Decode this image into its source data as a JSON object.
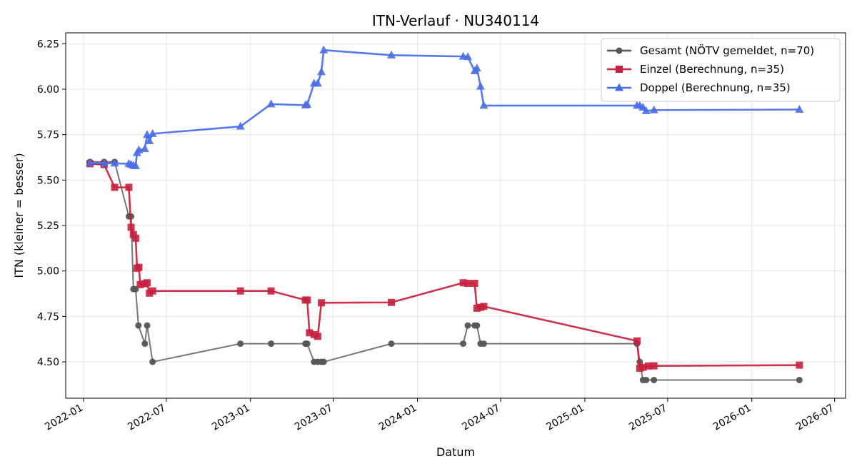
{
  "chart_data": {
    "type": "line",
    "title": "ITN-Verlauf · NU340114",
    "xlabel": "Datum",
    "ylabel": "ITN  (kleiner = besser)",
    "x_ticks": [
      "2022-01",
      "2022-07",
      "2023-01",
      "2023-07",
      "2024-01",
      "2024-07",
      "2025-01",
      "2025-07",
      "2026-01",
      "2026-07"
    ],
    "y_ticks": [
      "4.50",
      "4.75",
      "5.00",
      "5.25",
      "5.50",
      "5.75",
      "6.00",
      "6.25"
    ],
    "xlim": [
      "2021-11-23",
      "2026-07-25"
    ],
    "ylim": [
      4.3,
      6.31
    ],
    "grid": true,
    "legend_position": "top-right",
    "series": [
      {
        "name": "Gesamt (NÖTV gemeldet, n=70)",
        "color": "#555555",
        "marker": "circle",
        "points": [
          [
            "2022-01-15",
            5.6
          ],
          [
            "2022-02-15",
            5.6
          ],
          [
            "2022-03-10",
            5.6
          ],
          [
            "2022-04-10",
            5.3
          ],
          [
            "2022-04-15",
            5.3
          ],
          [
            "2022-04-20",
            4.9
          ],
          [
            "2022-04-25",
            4.9
          ],
          [
            "2022-05-01",
            4.7
          ],
          [
            "2022-05-15",
            4.6
          ],
          [
            "2022-05-20",
            4.7
          ],
          [
            "2022-06-01",
            4.5
          ],
          [
            "2022-12-10",
            4.6
          ],
          [
            "2023-02-15",
            4.6
          ],
          [
            "2023-05-01",
            4.6
          ],
          [
            "2023-05-05",
            4.6
          ],
          [
            "2023-05-20",
            4.5
          ],
          [
            "2023-05-28",
            4.5
          ],
          [
            "2023-06-05",
            4.5
          ],
          [
            "2023-06-10",
            4.5
          ],
          [
            "2023-11-05",
            4.6
          ],
          [
            "2024-04-10",
            4.6
          ],
          [
            "2024-04-20",
            4.7
          ],
          [
            "2024-05-05",
            4.7
          ],
          [
            "2024-05-10",
            4.7
          ],
          [
            "2024-05-18",
            4.6
          ],
          [
            "2024-05-25",
            4.6
          ],
          [
            "2025-04-25",
            4.6
          ],
          [
            "2025-05-01",
            4.5
          ],
          [
            "2025-05-08",
            4.4
          ],
          [
            "2025-05-15",
            4.4
          ],
          [
            "2025-06-01",
            4.4
          ],
          [
            "2026-04-15",
            4.4
          ]
        ]
      },
      {
        "name": "Einzel (Berechnung, n=35)",
        "color": "#c8203e",
        "marker": "square",
        "points": [
          [
            "2022-01-15",
            5.59
          ],
          [
            "2022-02-15",
            5.585
          ],
          [
            "2022-03-10",
            5.46
          ],
          [
            "2022-04-10",
            5.46
          ],
          [
            "2022-04-15",
            5.24
          ],
          [
            "2022-04-20",
            5.2
          ],
          [
            "2022-04-25",
            5.18
          ],
          [
            "2022-04-28",
            5.015
          ],
          [
            "2022-05-02",
            5.02
          ],
          [
            "2022-05-05",
            4.925
          ],
          [
            "2022-05-15",
            4.93
          ],
          [
            "2022-05-20",
            4.935
          ],
          [
            "2022-05-25",
            4.878
          ],
          [
            "2022-06-01",
            4.89
          ],
          [
            "2022-12-10",
            4.89
          ],
          [
            "2023-02-15",
            4.89
          ],
          [
            "2023-05-01",
            4.84
          ],
          [
            "2023-05-05",
            4.84
          ],
          [
            "2023-05-10",
            4.66
          ],
          [
            "2023-05-20",
            4.65
          ],
          [
            "2023-05-28",
            4.64
          ],
          [
            "2023-06-05",
            4.825
          ],
          [
            "2023-11-05",
            4.827
          ],
          [
            "2024-04-10",
            4.935
          ],
          [
            "2024-04-20",
            4.932
          ],
          [
            "2024-05-05",
            4.932
          ],
          [
            "2024-05-10",
            4.795
          ],
          [
            "2024-05-18",
            4.8
          ],
          [
            "2024-05-25",
            4.805
          ],
          [
            "2025-04-25",
            4.615
          ],
          [
            "2025-05-01",
            4.465
          ],
          [
            "2025-05-08",
            4.47
          ],
          [
            "2025-05-20",
            4.477
          ],
          [
            "2025-06-01",
            4.478
          ],
          [
            "2026-04-15",
            4.482
          ]
        ]
      },
      {
        "name": "Doppel (Berechnung, n=35)",
        "color": "#4a6ee8",
        "marker": "triangle",
        "points": [
          [
            "2022-01-15",
            5.595
          ],
          [
            "2022-02-15",
            5.592
          ],
          [
            "2022-03-10",
            5.592
          ],
          [
            "2022-04-10",
            5.59
          ],
          [
            "2022-04-15",
            5.585
          ],
          [
            "2022-04-20",
            5.58
          ],
          [
            "2022-04-25",
            5.578
          ],
          [
            "2022-04-28",
            5.65
          ],
          [
            "2022-05-02",
            5.665
          ],
          [
            "2022-05-15",
            5.672
          ],
          [
            "2022-05-20",
            5.75
          ],
          [
            "2022-05-25",
            5.715
          ],
          [
            "2022-06-01",
            5.755
          ],
          [
            "2022-12-10",
            5.795
          ],
          [
            "2023-02-15",
            5.918
          ],
          [
            "2023-05-01",
            5.912
          ],
          [
            "2023-05-05",
            5.915
          ],
          [
            "2023-05-20",
            6.032
          ],
          [
            "2023-05-28",
            6.032
          ],
          [
            "2023-06-05",
            6.095
          ],
          [
            "2023-06-10",
            6.215
          ],
          [
            "2023-11-05",
            6.187
          ],
          [
            "2024-04-10",
            6.18
          ],
          [
            "2024-04-20",
            6.178
          ],
          [
            "2024-05-05",
            6.1
          ],
          [
            "2024-05-10",
            6.115
          ],
          [
            "2024-05-18",
            6.015
          ],
          [
            "2024-05-25",
            5.91
          ],
          [
            "2025-04-25",
            5.91
          ],
          [
            "2025-05-01",
            5.91
          ],
          [
            "2025-05-08",
            5.9
          ],
          [
            "2025-05-15",
            5.88
          ],
          [
            "2025-06-01",
            5.885
          ],
          [
            "2026-04-15",
            5.888
          ]
        ]
      }
    ]
  }
}
